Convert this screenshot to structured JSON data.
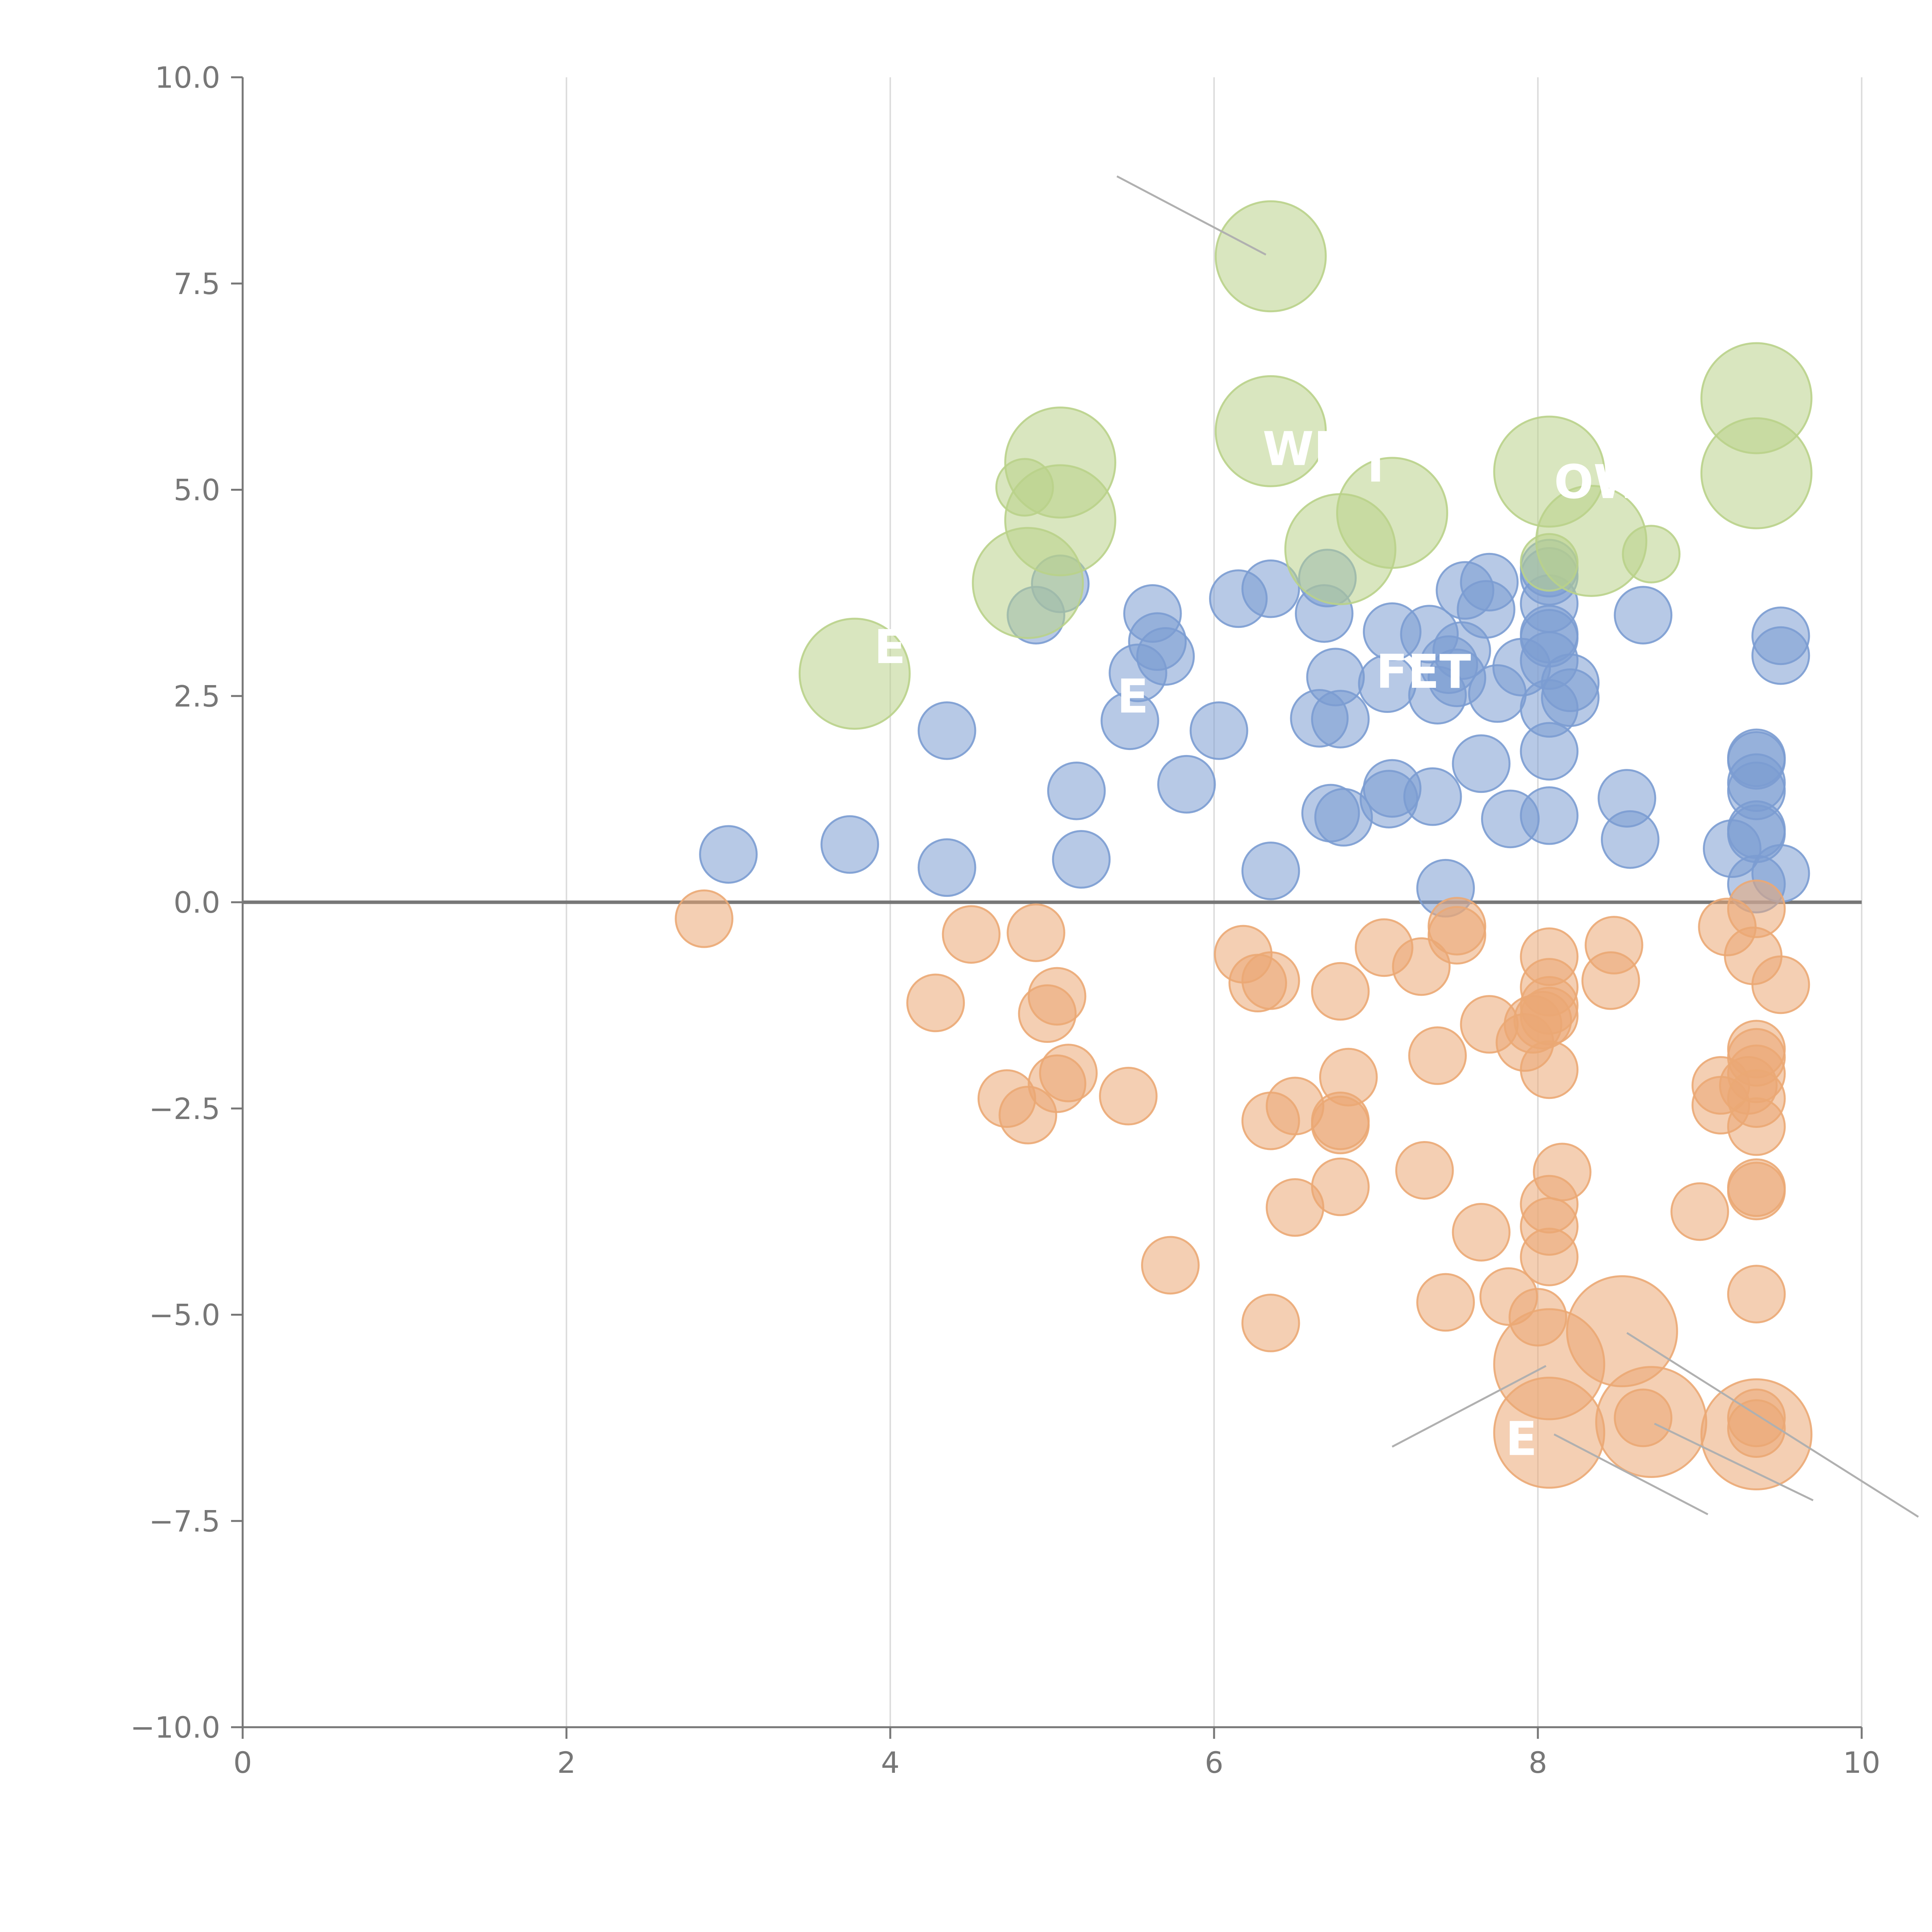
{
  "chart_data": {
    "type": "scatter",
    "title": "",
    "xlabel": "",
    "ylabel": "",
    "xlim": [
      0,
      10
    ],
    "ylim": [
      -10,
      10
    ],
    "grid": "vertical",
    "x_ticks": [
      "0",
      "2",
      "4",
      "6",
      "8",
      "10"
    ],
    "y_ticks": [
      "10.0",
      "7.5",
      "5.0",
      "2.5",
      "0.0",
      "−2.5",
      "−5.0",
      "−7.5",
      "−10.0"
    ],
    "series": [
      {
        "name": "blue",
        "color": "#7b9cd1",
        "points": [
          {
            "x": 3.0,
            "y": 0.58,
            "size": 0.35
          },
          {
            "x": 3.75,
            "y": 0.7,
            "size": 0.35
          },
          {
            "x": 4.35,
            "y": 2.08,
            "size": 0.35
          },
          {
            "x": 4.35,
            "y": 0.42,
            "size": 0.35
          },
          {
            "x": 4.9,
            "y": 3.48,
            "size": 0.35
          },
          {
            "x": 5.05,
            "y": 3.86,
            "size": 0.35
          },
          {
            "x": 5.15,
            "y": 1.35,
            "size": 0.35
          },
          {
            "x": 5.18,
            "y": 0.52,
            "size": 0.35
          },
          {
            "x": 5.48,
            "y": 2.2,
            "size": 0.35
          },
          {
            "x": 5.53,
            "y": 2.78,
            "size": 0.35
          },
          {
            "x": 5.62,
            "y": 3.5,
            "size": 0.35
          },
          {
            "x": 5.65,
            "y": 3.16,
            "size": 0.35
          },
          {
            "x": 5.7,
            "y": 2.98,
            "size": 0.35
          },
          {
            "x": 5.83,
            "y": 1.43,
            "size": 0.35
          },
          {
            "x": 6.03,
            "y": 2.08,
            "size": 0.35
          },
          {
            "x": 6.15,
            "y": 3.68,
            "size": 0.35
          },
          {
            "x": 6.35,
            "y": 3.8,
            "size": 0.35
          },
          {
            "x": 6.35,
            "y": 0.38,
            "size": 0.35
          },
          {
            "x": 6.65,
            "y": 2.23,
            "size": 0.35
          },
          {
            "x": 6.68,
            "y": 3.5,
            "size": 0.35
          },
          {
            "x": 6.7,
            "y": 3.93,
            "size": 0.35
          },
          {
            "x": 6.72,
            "y": 1.08,
            "size": 0.35
          },
          {
            "x": 6.75,
            "y": 2.73,
            "size": 0.35
          },
          {
            "x": 6.78,
            "y": 2.22,
            "size": 0.35
          },
          {
            "x": 6.8,
            "y": 1.03,
            "size": 0.35
          },
          {
            "x": 7.07,
            "y": 2.65,
            "size": 0.35
          },
          {
            "x": 7.08,
            "y": 1.25,
            "size": 0.35
          },
          {
            "x": 7.1,
            "y": 1.38,
            "size": 0.35
          },
          {
            "x": 7.1,
            "y": 3.28,
            "size": 0.35
          },
          {
            "x": 7.33,
            "y": 3.25,
            "size": 0.35
          },
          {
            "x": 7.35,
            "y": 1.28,
            "size": 0.35
          },
          {
            "x": 7.38,
            "y": 2.51,
            "size": 0.35
          },
          {
            "x": 7.43,
            "y": 0.17,
            "size": 0.35
          },
          {
            "x": 7.45,
            "y": 2.88,
            "size": 0.35
          },
          {
            "x": 7.5,
            "y": 2.72,
            "size": 0.35
          },
          {
            "x": 7.53,
            "y": 3.05,
            "size": 0.35
          },
          {
            "x": 7.55,
            "y": 3.78,
            "size": 0.35
          },
          {
            "x": 7.65,
            "y": 1.68,
            "size": 0.35
          },
          {
            "x": 7.68,
            "y": 3.55,
            "size": 0.35
          },
          {
            "x": 7.7,
            "y": 3.88,
            "size": 0.35
          },
          {
            "x": 7.75,
            "y": 2.53,
            "size": 0.35
          },
          {
            "x": 7.83,
            "y": 1.01,
            "size": 0.35
          },
          {
            "x": 7.9,
            "y": 2.85,
            "size": 0.35
          },
          {
            "x": 8.07,
            "y": 4.05,
            "size": 0.35
          },
          {
            "x": 8.07,
            "y": 3.95,
            "size": 0.35
          },
          {
            "x": 8.07,
            "y": 3.62,
            "size": 0.35
          },
          {
            "x": 8.07,
            "y": 3.25,
            "size": 0.35
          },
          {
            "x": 8.07,
            "y": 3.2,
            "size": 0.35
          },
          {
            "x": 8.07,
            "y": 2.93,
            "size": 0.35
          },
          {
            "x": 8.07,
            "y": 2.35,
            "size": 0.35
          },
          {
            "x": 8.07,
            "y": 1.83,
            "size": 0.35
          },
          {
            "x": 8.07,
            "y": 1.05,
            "size": 0.35
          },
          {
            "x": 8.2,
            "y": 2.66,
            "size": 0.35
          },
          {
            "x": 8.2,
            "y": 2.48,
            "size": 0.35
          },
          {
            "x": 8.55,
            "y": 1.26,
            "size": 0.35
          },
          {
            "x": 8.57,
            "y": 0.76,
            "size": 0.35
          },
          {
            "x": 8.65,
            "y": 3.48,
            "size": 0.35
          },
          {
            "x": 9.2,
            "y": 0.65,
            "size": 0.35
          },
          {
            "x": 9.35,
            "y": 1.75,
            "size": 0.35
          },
          {
            "x": 9.35,
            "y": 1.72,
            "size": 0.35
          },
          {
            "x": 9.35,
            "y": 1.45,
            "size": 0.35
          },
          {
            "x": 9.35,
            "y": 1.35,
            "size": 0.35
          },
          {
            "x": 9.35,
            "y": 0.88,
            "size": 0.35
          },
          {
            "x": 9.35,
            "y": 0.83,
            "size": 0.35
          },
          {
            "x": 9.35,
            "y": 0.22,
            "size": 0.35
          },
          {
            "x": 9.5,
            "y": 3.23,
            "size": 0.35
          },
          {
            "x": 9.5,
            "y": 2.99,
            "size": 0.35
          },
          {
            "x": 9.5,
            "y": 0.35,
            "size": 0.35
          }
        ]
      },
      {
        "name": "orange",
        "color": "#eba874",
        "points": [
          {
            "x": 2.85,
            "y": -0.2,
            "size": 0.35
          },
          {
            "x": 4.28,
            "y": -1.22,
            "size": 0.35
          },
          {
            "x": 4.5,
            "y": -0.39,
            "size": 0.35
          },
          {
            "x": 4.72,
            "y": -2.38,
            "size": 0.35
          },
          {
            "x": 4.85,
            "y": -2.58,
            "size": 0.35
          },
          {
            "x": 4.9,
            "y": -0.37,
            "size": 0.35
          },
          {
            "x": 4.97,
            "y": -1.35,
            "size": 0.35
          },
          {
            "x": 5.03,
            "y": -1.14,
            "size": 0.35
          },
          {
            "x": 5.03,
            "y": -2.2,
            "size": 0.35
          },
          {
            "x": 5.1,
            "y": -2.07,
            "size": 0.35
          },
          {
            "x": 5.47,
            "y": -2.35,
            "size": 0.35
          },
          {
            "x": 5.73,
            "y": -4.4,
            "size": 0.35
          },
          {
            "x": 6.18,
            "y": -0.63,
            "size": 0.35
          },
          {
            "x": 6.27,
            "y": -0.98,
            "size": 0.35
          },
          {
            "x": 6.35,
            "y": -0.95,
            "size": 0.35
          },
          {
            "x": 6.35,
            "y": -2.65,
            "size": 0.35
          },
          {
            "x": 6.35,
            "y": -5.1,
            "size": 0.35
          },
          {
            "x": 6.5,
            "y": -2.47,
            "size": 0.35
          },
          {
            "x": 6.5,
            "y": -3.7,
            "size": 0.35
          },
          {
            "x": 6.78,
            "y": -1.08,
            "size": 0.35
          },
          {
            "x": 6.78,
            "y": -2.65,
            "size": 0.35
          },
          {
            "x": 6.78,
            "y": -2.7,
            "size": 0.35
          },
          {
            "x": 6.78,
            "y": -3.45,
            "size": 0.35
          },
          {
            "x": 6.83,
            "y": -2.12,
            "size": 0.35
          },
          {
            "x": 7.05,
            "y": -0.55,
            "size": 0.35
          },
          {
            "x": 7.28,
            "y": -0.78,
            "size": 0.35
          },
          {
            "x": 7.3,
            "y": -3.25,
            "size": 0.35
          },
          {
            "x": 7.38,
            "y": -1.86,
            "size": 0.35
          },
          {
            "x": 7.43,
            "y": -4.85,
            "size": 0.35
          },
          {
            "x": 7.5,
            "y": -0.29,
            "size": 0.35
          },
          {
            "x": 7.5,
            "y": -0.4,
            "size": 0.35
          },
          {
            "x": 7.65,
            "y": -4.0,
            "size": 0.35
          },
          {
            "x": 7.7,
            "y": -1.48,
            "size": 0.35
          },
          {
            "x": 7.82,
            "y": -4.78,
            "size": 0.35
          },
          {
            "x": 7.92,
            "y": -1.7,
            "size": 0.35
          },
          {
            "x": 7.97,
            "y": -1.48,
            "size": 0.35
          },
          {
            "x": 8.0,
            "y": -5.03,
            "size": 0.35
          },
          {
            "x": 8.03,
            "y": -1.43,
            "size": 0.35
          },
          {
            "x": 8.07,
            "y": -0.66,
            "size": 0.35
          },
          {
            "x": 8.07,
            "y": -1.03,
            "size": 0.35
          },
          {
            "x": 8.07,
            "y": -1.25,
            "size": 0.35
          },
          {
            "x": 8.07,
            "y": -1.38,
            "size": 0.35
          },
          {
            "x": 8.07,
            "y": -2.03,
            "size": 0.35
          },
          {
            "x": 8.07,
            "y": -3.66,
            "size": 0.35
          },
          {
            "x": 8.07,
            "y": -3.93,
            "size": 0.35
          },
          {
            "x": 8.07,
            "y": -4.3,
            "size": 0.35
          },
          {
            "x": 8.15,
            "y": -3.27,
            "size": 0.35
          },
          {
            "x": 8.45,
            "y": -0.95,
            "size": 0.35
          },
          {
            "x": 8.47,
            "y": -0.52,
            "size": 0.35
          },
          {
            "x": 8.65,
            "y": -6.25,
            "size": 0.35
          },
          {
            "x": 9.0,
            "y": -3.75,
            "size": 0.35
          },
          {
            "x": 9.13,
            "y": -2.22,
            "size": 0.35
          },
          {
            "x": 9.13,
            "y": -2.46,
            "size": 0.35
          },
          {
            "x": 9.17,
            "y": -0.3,
            "size": 0.35
          },
          {
            "x": 9.3,
            "y": -2.22,
            "size": 0.35
          },
          {
            "x": 9.33,
            "y": -0.65,
            "size": 0.35
          },
          {
            "x": 9.35,
            "y": -0.08,
            "size": 0.35
          },
          {
            "x": 9.35,
            "y": -1.78,
            "size": 0.35
          },
          {
            "x": 9.35,
            "y": -1.88,
            "size": 0.35
          },
          {
            "x": 9.35,
            "y": -2.08,
            "size": 0.35
          },
          {
            "x": 9.35,
            "y": -2.38,
            "size": 0.35
          },
          {
            "x": 9.35,
            "y": -2.72,
            "size": 0.35
          },
          {
            "x": 9.35,
            "y": -3.46,
            "size": 0.35
          },
          {
            "x": 9.35,
            "y": -3.5,
            "size": 0.35
          },
          {
            "x": 9.35,
            "y": -4.75,
            "size": 0.35
          },
          {
            "x": 9.35,
            "y": -6.25,
            "size": 0.35
          },
          {
            "x": 9.35,
            "y": -6.38,
            "size": 0.35
          },
          {
            "x": 9.5,
            "y": -1.0,
            "size": 0.35
          },
          {
            "x": 8.07,
            "y": -5.6,
            "size": 0.68
          },
          {
            "x": 8.07,
            "y": -6.43,
            "size": 0.68
          },
          {
            "x": 8.52,
            "y": -5.2,
            "size": 0.68
          },
          {
            "x": 8.7,
            "y": -6.3,
            "size": 0.68
          },
          {
            "x": 9.35,
            "y": -6.45,
            "size": 0.68
          }
        ]
      },
      {
        "name": "green",
        "color": "#b9d28a",
        "points": [
          {
            "x": 3.78,
            "y": 2.77,
            "size": 0.68
          },
          {
            "x": 4.83,
            "y": 5.03,
            "size": 0.35
          },
          {
            "x": 4.85,
            "y": 3.87,
            "size": 0.68
          },
          {
            "x": 5.05,
            "y": 5.33,
            "size": 0.68
          },
          {
            "x": 5.05,
            "y": 4.63,
            "size": 0.68
          },
          {
            "x": 6.35,
            "y": 7.83,
            "size": 0.68
          },
          {
            "x": 6.35,
            "y": 5.71,
            "size": 0.68
          },
          {
            "x": 6.78,
            "y": 4.28,
            "size": 0.68
          },
          {
            "x": 7.1,
            "y": 4.72,
            "size": 0.68
          },
          {
            "x": 8.07,
            "y": 5.22,
            "size": 0.68
          },
          {
            "x": 8.07,
            "y": 4.12,
            "size": 0.35
          },
          {
            "x": 8.33,
            "y": 4.38,
            "size": 0.68
          },
          {
            "x": 8.7,
            "y": 4.22,
            "size": 0.35
          },
          {
            "x": 9.35,
            "y": 6.11,
            "size": 0.68
          },
          {
            "x": 9.35,
            "y": 5.2,
            "size": 0.68
          }
        ]
      }
    ],
    "annotations": [
      {
        "text": "WE",
        "x": 6.3,
        "y": 5.3
      },
      {
        "text": "T",
        "x": 6.9,
        "y": 5.1
      },
      {
        "text": "OW",
        "x": 8.1,
        "y": 4.9
      },
      {
        "text": "E",
        "x": 3.9,
        "y": 2.9
      },
      {
        "text": "E",
        "x": 5.4,
        "y": 2.3
      },
      {
        "text": "FET",
        "x": 7.0,
        "y": 2.6
      },
      {
        "text": "E",
        "x": 7.8,
        "y": -6.7
      }
    ],
    "leader_lines": [
      {
        "x1": 5.4,
        "y1": 8.8,
        "x2": 6.32,
        "y2": 7.85
      },
      {
        "x1": 7.1,
        "y1": -6.6,
        "x2": 8.05,
        "y2": -5.62
      },
      {
        "x1": 8.55,
        "y1": -5.22,
        "x2": 10.35,
        "y2": -7.45
      },
      {
        "x1": 8.72,
        "y1": -6.32,
        "x2": 9.7,
        "y2": -7.25
      },
      {
        "x1": 8.1,
        "y1": -6.45,
        "x2": 9.05,
        "y2": -7.42
      }
    ]
  }
}
